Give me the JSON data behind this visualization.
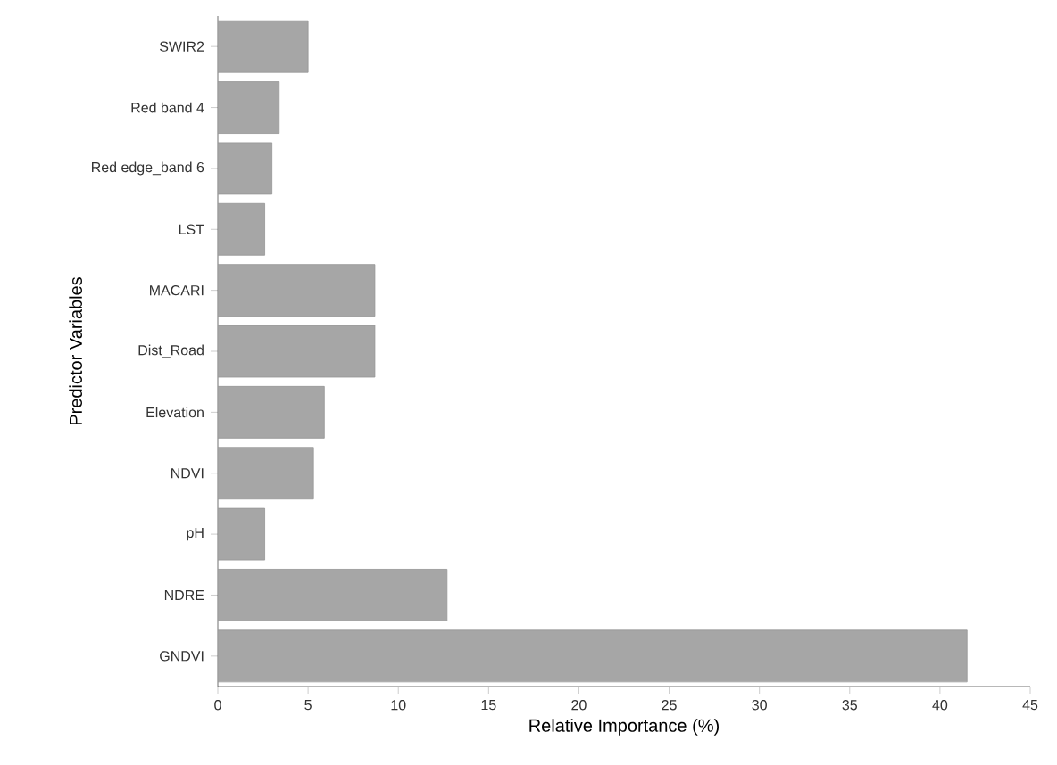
{
  "chart_data": {
    "type": "bar",
    "orientation": "horizontal",
    "xlabel": "Relative Importance (%)",
    "ylabel": "Predictor Variables",
    "categories": [
      "SWIR2",
      "Red band 4",
      "Red edge_band 6",
      "LST",
      "MACARI",
      "Dist_Road",
      "Elevation",
      "NDVI",
      "pH",
      "NDRE",
      "GNDVI"
    ],
    "values": [
      5.0,
      3.4,
      3.0,
      2.6,
      8.7,
      8.7,
      5.9,
      5.3,
      2.6,
      12.7,
      41.5
    ],
    "color": "#a6a6a6",
    "xlim": [
      0,
      45
    ],
    "xticks": [
      0,
      5,
      10,
      15,
      20,
      25,
      30,
      35,
      40,
      45
    ]
  }
}
